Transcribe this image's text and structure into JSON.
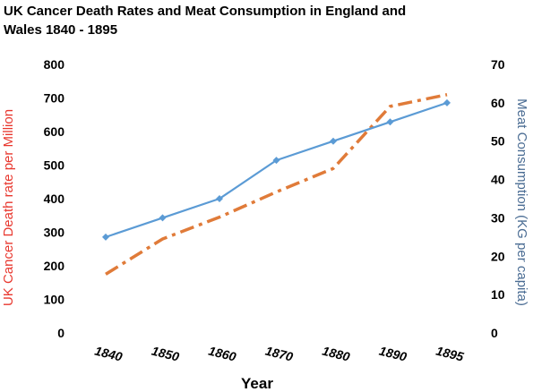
{
  "chart_data": {
    "type": "line",
    "title_line1": "UK Cancer Death Rates and Meat Consumption  in England and",
    "title_line2": "Wales 1840 - 1895",
    "xlabel": "Year",
    "ylabel_left": "UK Cancer Death rate per Million",
    "ylabel_right": "Meat Consumption  (KG per capita)",
    "categories": [
      "1840",
      "1850",
      "1860",
      "1870",
      "1880",
      "1890",
      "1895"
    ],
    "ylim_left": [
      0,
      800
    ],
    "yticks_left": [
      0,
      100,
      200,
      300,
      400,
      500,
      600,
      700,
      800
    ],
    "ylim_right": [
      0,
      70
    ],
    "yticks_right": [
      0,
      10,
      20,
      30,
      40,
      50,
      60,
      70
    ],
    "series": [
      {
        "name": "UK Cancer Death rate per Million",
        "axis": "left",
        "color": "#e07b39",
        "style": "dash-dot",
        "values": [
          175,
          280,
          345,
          420,
          490,
          675,
          710
        ]
      },
      {
        "name": "Meat Consumption (KG per capita)",
        "axis": "right",
        "color": "#5b9bd5",
        "style": "solid-diamond",
        "values": [
          25,
          30,
          35,
          45,
          50,
          55,
          60
        ]
      }
    ],
    "left_label_color": "#e8372e",
    "right_label_color": "#4a6c93",
    "grid": false
  }
}
